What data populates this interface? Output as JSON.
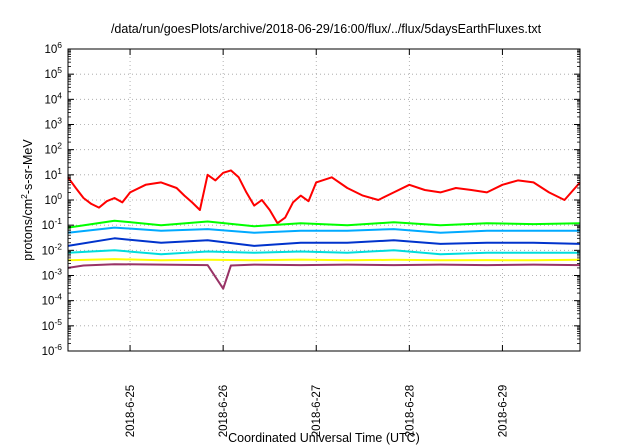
{
  "chart_data": {
    "type": "line",
    "title": "/data/run/goesPlots/archive/2018-06-29/16:00/flux/../flux/5daysEarthFluxes.txt",
    "xlabel": "Coordinated Universal Time (UTC)",
    "ylabel": {
      "base": "protons/cm",
      "exp": "2",
      "rest": "-s-sr-MeV"
    },
    "y_scale": "log",
    "ylim": [
      1e-06,
      1000000.0
    ],
    "y_ticks": [
      {
        "base": "10",
        "exp": "6"
      },
      {
        "base": "10",
        "exp": "5"
      },
      {
        "base": "10",
        "exp": "4"
      },
      {
        "base": "10",
        "exp": "3"
      },
      {
        "base": "10",
        "exp": "2"
      },
      {
        "base": "10",
        "exp": "1"
      },
      {
        "base": "10",
        "exp": "0"
      },
      {
        "base": "10",
        "exp": "-1"
      },
      {
        "base": "10",
        "exp": "-2"
      },
      {
        "base": "10",
        "exp": "-3"
      },
      {
        "base": "10",
        "exp": "-4"
      },
      {
        "base": "10",
        "exp": "-5"
      },
      {
        "base": "10",
        "exp": "-6"
      }
    ],
    "xlim": [
      "2018-06-24T08:00",
      "2018-06-29T20:00"
    ],
    "x_ticks": [
      "2018-6-25",
      "2018-6-26",
      "2018-6-27",
      "2018-6-28",
      "2018-6-29"
    ],
    "grid": true,
    "legend": "none",
    "series": [
      {
        "color": "#ff0000",
        "x": [
          "2018-06-24T08:00",
          "2018-06-24T10:00",
          "2018-06-24T12:00",
          "2018-06-24T14:00",
          "2018-06-24T16:00",
          "2018-06-24T18:00",
          "2018-06-24T20:00",
          "2018-06-24T22:00",
          "2018-06-25T00:00",
          "2018-06-25T04:00",
          "2018-06-25T08:00",
          "2018-06-25T12:00",
          "2018-06-25T14:00",
          "2018-06-25T16:00",
          "2018-06-25T18:00",
          "2018-06-25T20:00",
          "2018-06-25T22:00",
          "2018-06-26T00:00",
          "2018-06-26T02:00",
          "2018-06-26T04:00",
          "2018-06-26T06:00",
          "2018-06-26T08:00",
          "2018-06-26T10:00",
          "2018-06-26T12:00",
          "2018-06-26T14:00",
          "2018-06-26T16:00",
          "2018-06-26T18:00",
          "2018-06-26T20:00",
          "2018-06-26T22:00",
          "2018-06-27T00:00",
          "2018-06-27T04:00",
          "2018-06-27T08:00",
          "2018-06-27T12:00",
          "2018-06-27T16:00",
          "2018-06-27T20:00",
          "2018-06-28T00:00",
          "2018-06-28T04:00",
          "2018-06-28T08:00",
          "2018-06-28T12:00",
          "2018-06-28T16:00",
          "2018-06-28T20:00",
          "2018-06-29T00:00",
          "2018-06-29T04:00",
          "2018-06-29T08:00",
          "2018-06-29T12:00",
          "2018-06-29T16:00",
          "2018-06-29T20:00"
        ],
        "y": [
          8,
          3,
          1.2,
          0.7,
          0.5,
          0.9,
          1.2,
          0.8,
          2,
          4,
          5,
          3,
          1.5,
          0.8,
          0.4,
          10,
          6,
          12,
          15,
          8,
          2,
          0.6,
          1,
          0.4,
          0.12,
          0.2,
          0.8,
          1.5,
          0.9,
          5,
          8,
          3,
          1.5,
          1,
          2,
          4,
          2.5,
          2,
          3,
          2.5,
          2,
          4,
          6,
          5,
          2,
          1,
          5
        ]
      },
      {
        "color": "#00ff00",
        "x": [
          "2018-06-24T08:00",
          "2018-06-24T20:00",
          "2018-06-25T08:00",
          "2018-06-25T20:00",
          "2018-06-26T08:00",
          "2018-06-26T20:00",
          "2018-06-27T08:00",
          "2018-06-27T20:00",
          "2018-06-28T08:00",
          "2018-06-28T20:00",
          "2018-06-29T08:00",
          "2018-06-29T20:00"
        ],
        "y": [
          0.08,
          0.15,
          0.1,
          0.14,
          0.09,
          0.12,
          0.1,
          0.13,
          0.1,
          0.12,
          0.11,
          0.12
        ]
      },
      {
        "color": "#00aaff",
        "x": [
          "2018-06-24T08:00",
          "2018-06-24T20:00",
          "2018-06-25T08:00",
          "2018-06-25T20:00",
          "2018-06-26T08:00",
          "2018-06-26T20:00",
          "2018-06-27T08:00",
          "2018-06-27T20:00",
          "2018-06-28T08:00",
          "2018-06-28T20:00",
          "2018-06-29T08:00",
          "2018-06-29T20:00"
        ],
        "y": [
          0.05,
          0.08,
          0.06,
          0.07,
          0.05,
          0.06,
          0.06,
          0.07,
          0.05,
          0.06,
          0.06,
          0.06
        ]
      },
      {
        "color": "#0033cc",
        "x": [
          "2018-06-24T08:00",
          "2018-06-24T20:00",
          "2018-06-25T08:00",
          "2018-06-25T20:00",
          "2018-06-26T08:00",
          "2018-06-26T20:00",
          "2018-06-27T08:00",
          "2018-06-27T20:00",
          "2018-06-28T08:00",
          "2018-06-28T20:00",
          "2018-06-29T08:00",
          "2018-06-29T20:00"
        ],
        "y": [
          0.015,
          0.03,
          0.02,
          0.025,
          0.015,
          0.02,
          0.02,
          0.025,
          0.018,
          0.02,
          0.02,
          0.018
        ]
      },
      {
        "color": "#00dddd",
        "x": [
          "2018-06-24T08:00",
          "2018-06-24T20:00",
          "2018-06-25T08:00",
          "2018-06-25T20:00",
          "2018-06-26T08:00",
          "2018-06-26T20:00",
          "2018-06-27T08:00",
          "2018-06-27T20:00",
          "2018-06-28T08:00",
          "2018-06-28T20:00",
          "2018-06-29T08:00",
          "2018-06-29T20:00"
        ],
        "y": [
          0.008,
          0.01,
          0.007,
          0.009,
          0.008,
          0.009,
          0.008,
          0.01,
          0.007,
          0.008,
          0.008,
          0.008
        ]
      },
      {
        "color": "#ffff00",
        "x": [
          "2018-06-24T08:00",
          "2018-06-24T20:00",
          "2018-06-25T08:00",
          "2018-06-25T20:00",
          "2018-06-26T08:00",
          "2018-06-26T20:00",
          "2018-06-27T08:00",
          "2018-06-27T20:00",
          "2018-06-28T08:00",
          "2018-06-28T20:00",
          "2018-06-29T08:00",
          "2018-06-29T20:00"
        ],
        "y": [
          0.004,
          0.0045,
          0.004,
          0.0042,
          0.004,
          0.0043,
          0.004,
          0.0042,
          0.004,
          0.0041,
          0.004,
          0.0042
        ]
      },
      {
        "color": "#993366",
        "x": [
          "2018-06-24T08:00",
          "2018-06-24T12:00",
          "2018-06-24T20:00",
          "2018-06-25T08:00",
          "2018-06-25T20:00",
          "2018-06-26T00:00",
          "2018-06-26T02:00",
          "2018-06-26T08:00",
          "2018-06-26T20:00",
          "2018-06-27T08:00",
          "2018-06-27T20:00",
          "2018-06-28T08:00",
          "2018-06-28T20:00",
          "2018-06-29T08:00",
          "2018-06-29T20:00"
        ],
        "y": [
          0.002,
          0.0025,
          0.0028,
          0.0027,
          0.0026,
          0.0003,
          0.0025,
          0.0027,
          0.0026,
          0.0027,
          0.0026,
          0.0027,
          0.0026,
          0.0027,
          0.0026
        ]
      }
    ]
  }
}
